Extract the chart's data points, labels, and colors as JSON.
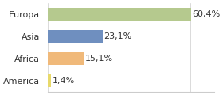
{
  "categories": [
    "America",
    "Africa",
    "Asia",
    "Europa"
  ],
  "values": [
    1.4,
    15.1,
    23.1,
    60.4
  ],
  "labels": [
    "1,4%",
    "15,1%",
    "23,1%",
    "60,4%"
  ],
  "bar_colors": [
    "#e8d96a",
    "#f0b97a",
    "#6f8fbf",
    "#b5c98e"
  ],
  "background_color": "#ffffff",
  "xlim": [
    0,
    70
  ],
  "label_fontsize": 8,
  "tick_fontsize": 8
}
